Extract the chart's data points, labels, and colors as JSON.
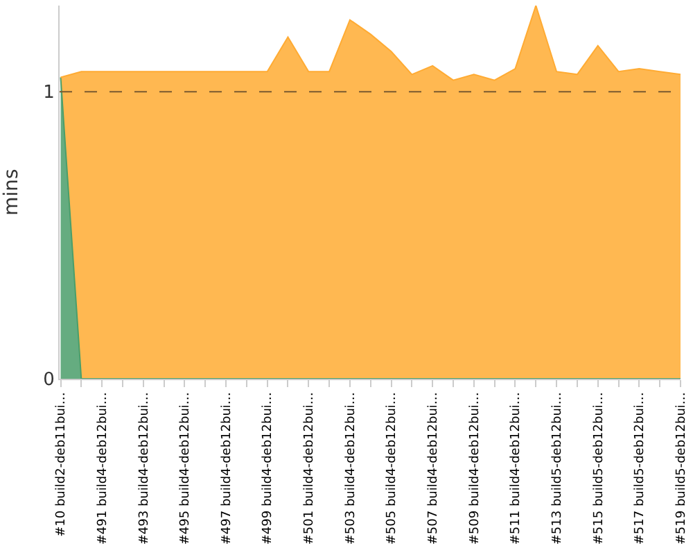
{
  "chart_data": {
    "type": "area",
    "stacked": true,
    "ylabel": "mins",
    "categories": [
      "#10 build2-deb11bui…",
      null,
      "#491 build4-deb12bui…",
      null,
      "#493 build4-deb12bui…",
      null,
      "#495 build4-deb12bui…",
      null,
      "#497 build4-deb12bui…",
      null,
      "#499 build4-deb12bui…",
      null,
      "#501 build4-deb12bui…",
      null,
      "#503 build4-deb12bui…",
      null,
      "#505 build4-deb12bui…",
      null,
      "#507 build4-deb12bui…",
      null,
      "#509 build4-deb12bui…",
      null,
      "#511 build4-deb12bui…",
      null,
      "#513 build5-deb12bui…",
      null,
      "#515 build5-deb12bui…",
      null,
      "#517 build5-deb12bui…",
      null,
      "#519 build5-deb12bui…"
    ],
    "series": [
      {
        "color": "#4a9e6a",
        "values": [
          1.05,
          0,
          0,
          0,
          0,
          0,
          0,
          0,
          0,
          0,
          0,
          0,
          0,
          0,
          0,
          0,
          0,
          0,
          0,
          0,
          0,
          0,
          0,
          0,
          0,
          0,
          0,
          0,
          0,
          0,
          0
        ]
      },
      {
        "color": "#ffab33",
        "values": [
          0,
          1.07,
          1.07,
          1.07,
          1.07,
          1.07,
          1.07,
          1.07,
          1.07,
          1.07,
          1.07,
          1.19,
          1.07,
          1.07,
          1.25,
          1.2,
          1.14,
          1.06,
          1.09,
          1.04,
          1.06,
          1.04,
          1.08,
          1.3,
          1.07,
          1.06,
          1.16,
          1.07,
          1.08,
          1.07,
          1.06
        ]
      }
    ],
    "ylim": [
      0,
      1.3
    ],
    "yticks": [
      0,
      1
    ],
    "ref_lines": [
      {
        "axis": "y",
        "value": 1,
        "color": "#7a5a30",
        "line_style": "dashed"
      }
    ]
  }
}
